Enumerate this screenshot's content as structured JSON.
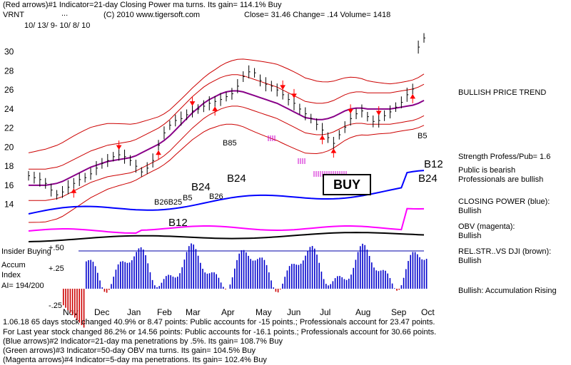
{
  "header": {
    "line1": "(Red arrows)#1 Indicator=21-day Closing Power ma turns. Its gain= 114.1% Buy",
    "ticker": "VRNT",
    "dots": "...",
    "source": "(C) 2010 www.tigersoft.com",
    "quote": "Close=  31.46  Change= .14 Volume= 1418",
    "dates": "10/ 13/ 9- 10/ 8/ 10"
  },
  "right_panel": {
    "trend": "BULLISH PRICE TREND",
    "strength": "Strength Profess/Pub= 1.6",
    "public_line1": "Public is bearish",
    "public_line2": "Professionals are bullish",
    "cp_title": "CLOSING POWER (blue):",
    "cp_value": "Bullish",
    "obv_title": "OBV (magenta):",
    "obv_value": "Bullish",
    "rel_title": "REL.STR..VS DJI (brown):",
    "rel_value": "Bullish",
    "accum": "Bullish: Accumulation Rising"
  },
  "left_panel": {
    "insider": "Insider Buying",
    "accum_label": "Accum",
    "index_label": "Index",
    "ai_value": "AI= 194/200"
  },
  "annotations": {
    "buy": "BUY",
    "b12_low": "B12",
    "b24_a": "B24",
    "b24_b": "B24",
    "b26": "B26",
    "b5": "B5",
    "b12_right": "B12",
    "b24_right": "B24",
    "b5_right": "B5",
    "b24_small": "B26B25",
    "b85": "B85"
  },
  "footer": {
    "line1": "1.06.18 65 days stock changed  40.9% or  8.47 points:  Public accounts for -15 points.;  Professionals account for  23.47 points.",
    "line2": " For Last year stock changed  86.2% or  14.56 points:  Public accounts for -16.1 points.;  Professionals account for  30.66 points.",
    "line3": "(Blue arrows)#2 Indicator=21-day ma penetrations by .5%. Its gain= 108.7% Buy",
    "line4": "(Green arrows)#3 Indicator=50-day OBV ma turns. Its gain= 104.5% Buy",
    "line5": "(Magenta arrows)#4 Indicator=5-day ma penetrations. Its gain= 102.4% Buy"
  },
  "colors": {
    "price": "#000000",
    "band": "#cc0000",
    "ma": "#880088",
    "closing_power": "#0000ff",
    "obv": "#ff00ff",
    "rel_str": "#000000",
    "accum": "#0000cc",
    "accum_neg": "#cc0000",
    "red_arrow": "#ff0000",
    "blue_arrow": "#0000ff",
    "magenta_arrow": "#cc00cc"
  },
  "chart_data": {
    "type": "line",
    "x_ticks": [
      "Nov",
      "Dec",
      "Jan",
      "Feb",
      "Mar",
      "Apr",
      "May",
      "Jun",
      "Jul",
      "Aug",
      "Sep",
      "Oct"
    ],
    "y_ticks": [
      14,
      16,
      18,
      20,
      22,
      24,
      26,
      28,
      30
    ],
    "ylim": [
      13,
      32
    ],
    "accum_ticks": [
      "+.50",
      "+.25",
      "-.25"
    ],
    "series": [
      {
        "values": [
          17,
          16.8,
          16.6,
          16.2,
          15.5,
          15.0,
          15.3,
          15.8,
          16.2,
          16.6,
          16.8,
          17.2,
          17.8,
          18.3,
          18.6,
          19.0,
          19.2,
          19.0,
          18.6,
          18.0,
          17.4,
          17.8,
          18.6,
          20.2,
          21.5,
          22.3,
          22.8,
          23.0,
          23.4,
          23.8,
          24.0,
          24.3,
          24.6,
          24.8,
          25.0,
          25.3,
          25.6,
          26.4,
          27.4,
          27.9,
          27.8,
          27.0,
          26.6,
          26.4,
          26.0,
          25.5,
          25.0,
          24.6,
          24.0,
          23.5,
          23.0,
          22.4,
          21.8,
          21.0,
          20.4,
          21.3,
          22.1,
          23.0,
          23.5,
          23.8,
          23.2,
          22.7,
          22.8,
          23.3,
          23.7,
          24.2,
          24.7,
          25.5,
          26.1,
          30.5,
          31.46
        ]
      },
      {
        "values": [
          16,
          16,
          16,
          16,
          16.1,
          16.2,
          16.4,
          16.7,
          17,
          17.3,
          17.6,
          17.9,
          18.1,
          18.3,
          18.5,
          18.6,
          18.7,
          18.8,
          18.9,
          19.1,
          19.4,
          19.7,
          20.0,
          20.3,
          20.7,
          21.2,
          21.8,
          22.4,
          23.0,
          23.6,
          24.1,
          24.6,
          25.0,
          25.3,
          25.6,
          25.8,
          25.9,
          25.9,
          25.8,
          25.6,
          25.4,
          25.2,
          25.0,
          24.8,
          24.6,
          24.3,
          24.0,
          23.7,
          23.4,
          23.1,
          23.0,
          22.9,
          22.9,
          23.0,
          23.2,
          23.5,
          23.8,
          24.0,
          24.1,
          24.1,
          24.0,
          24.0,
          24.0,
          24.0,
          24.0,
          24.1,
          24.2,
          24.3,
          24.4,
          24.6,
          24.9
        ]
      }
    ]
  }
}
